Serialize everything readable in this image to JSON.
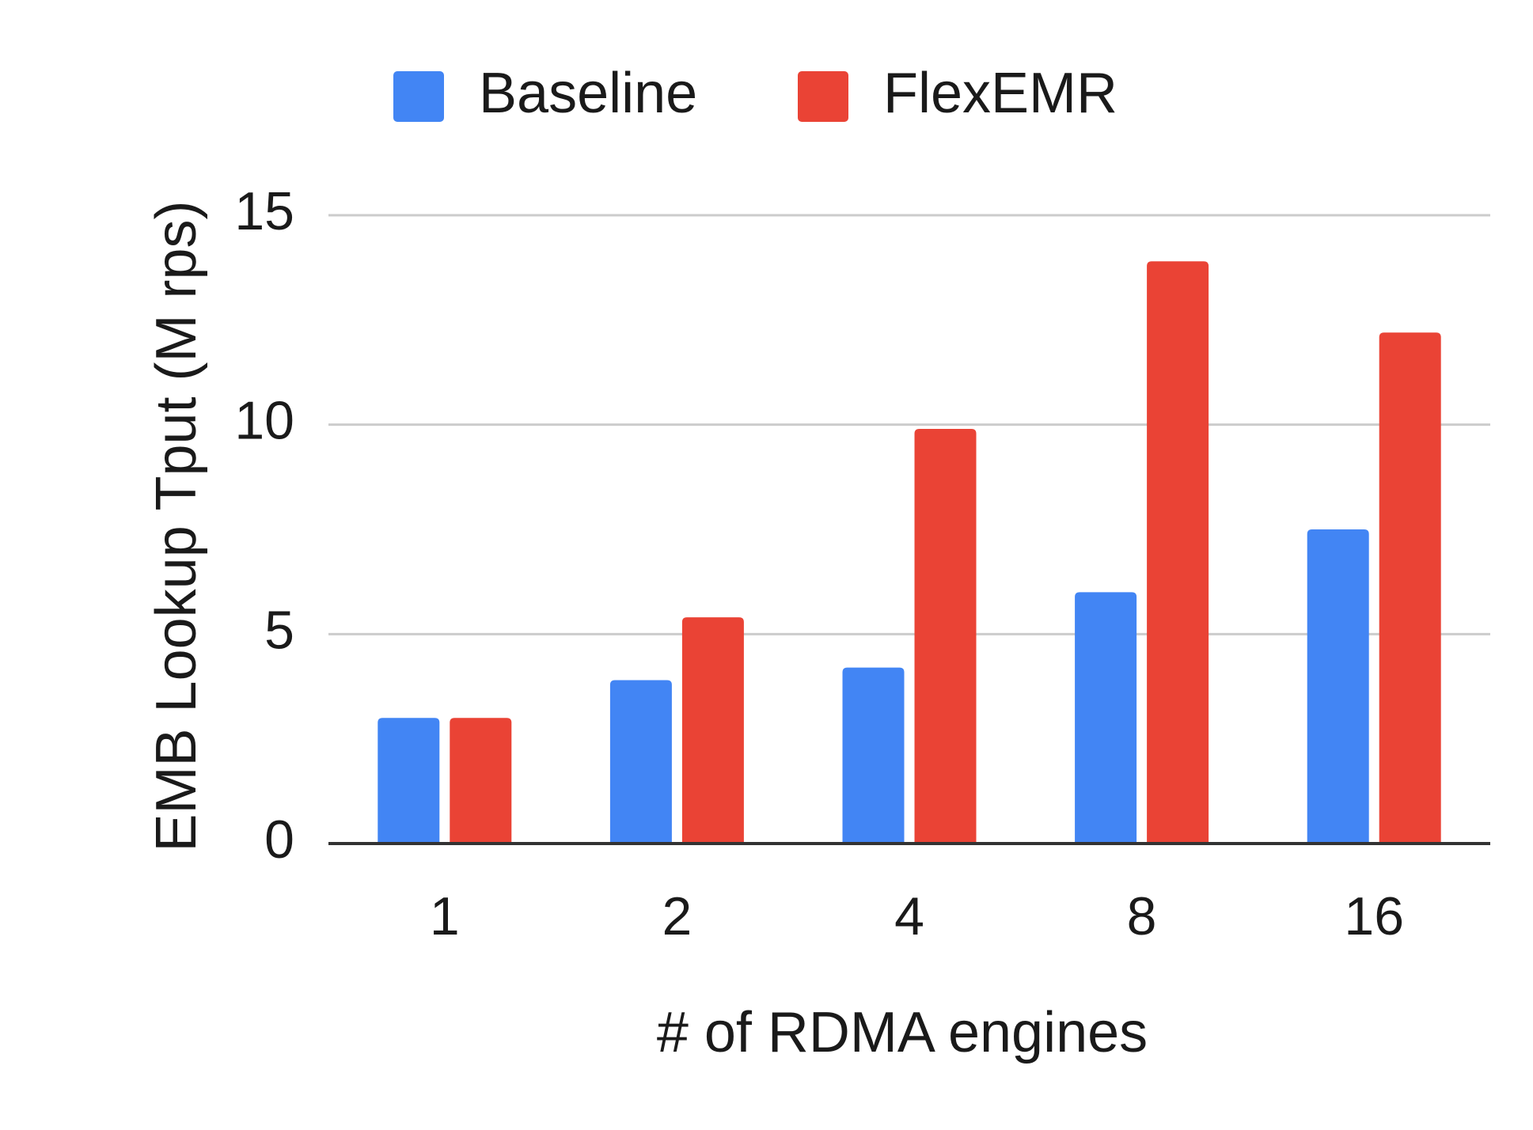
{
  "chart_data": {
    "type": "bar",
    "title": "",
    "categories": [
      "1",
      "2",
      "4",
      "8",
      "16"
    ],
    "series": [
      {
        "name": "Baseline",
        "color": "#4285f4",
        "values": [
          3.0,
          3.9,
          4.2,
          6.0,
          7.5
        ]
      },
      {
        "name": "FlexEMR",
        "color": "#ea4335",
        "values": [
          3.0,
          5.4,
          9.9,
          13.9,
          12.2
        ]
      }
    ],
    "xlabel": "# of RDMA engines",
    "ylabel": "EMB Lookup Tput (M rps)",
    "ylim": [
      0,
      15
    ],
    "yticks": [
      0,
      5,
      10,
      15
    ],
    "grid": true,
    "legend": "top-center"
  }
}
